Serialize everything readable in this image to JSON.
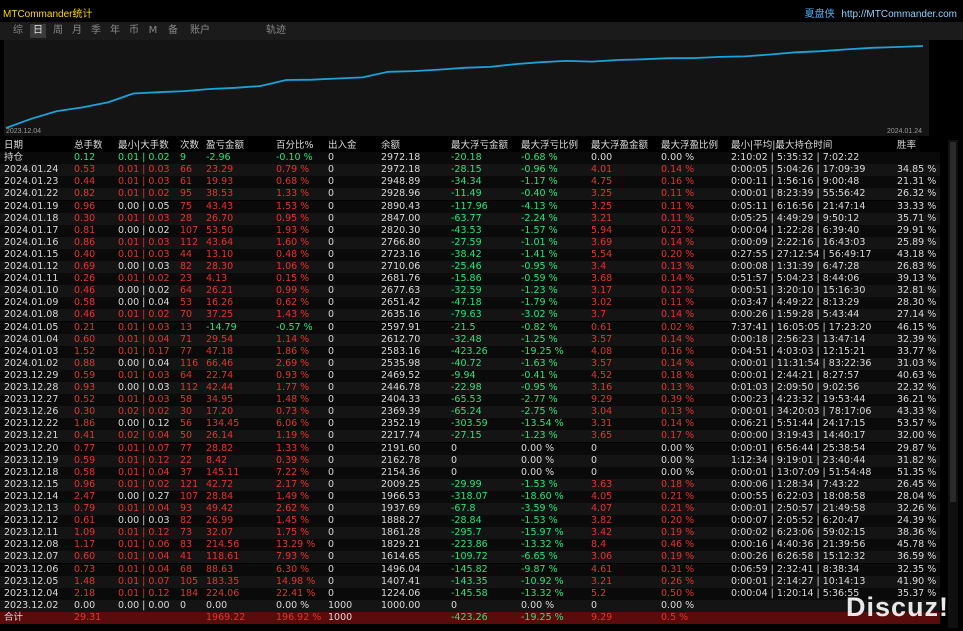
{
  "header": {
    "brand": "MTCommander统计",
    "copyright_cn": "夏盘侠",
    "copyright_url": "http://MTCommander.com"
  },
  "tabs": [
    "综",
    "日",
    "周",
    "月",
    "季",
    "年",
    "币",
    "M",
    "备",
    "账户",
    "轨迹"
  ],
  "active_tab": "日",
  "chart_data": {
    "type": "line",
    "x_start": "2023.12.04",
    "x_end": "2024.01.24",
    "line_color": "#1aa3d9",
    "background": "#141414"
  },
  "columns": [
    "日期",
    "总手数",
    "最小|大手数",
    "次数",
    "盈亏金额",
    "百分比%",
    "出入金",
    "余额",
    "最大浮亏金额",
    "最大浮亏比例",
    "最大浮盈金额",
    "最大浮盈比例",
    "最小|平均|最大持仓时间",
    "胜率"
  ],
  "holding": {
    "date": "持仓",
    "lots": "0.12",
    "minmax": "0.01 | 0.02",
    "count": "9",
    "pnl": "-2.96",
    "pct": "-0.10 %",
    "flow": "0",
    "balance": "2972.18",
    "dd": "-20.18",
    "ddpct": "-0.68 %",
    "fp": "0.00",
    "fppct": "0.00 %",
    "time": "2:10:02 | 5:35:32 | 7:02:22",
    "win": ""
  },
  "rows": [
    {
      "date": "2024.01.24",
      "lots": "0.53",
      "minmax": "0.01 | 0.03",
      "count": "66",
      "pnl": "23.29",
      "pct": "0.79 %",
      "flow": "0",
      "balance": "2972.18",
      "dd": "-28.15",
      "ddpct": "-0.96 %",
      "fp": "4.01",
      "fppct": "0.14 %",
      "time": "0:00:05 | 5:04:26 | 17:09:39",
      "win": "34.85 %"
    },
    {
      "date": "2024.01.23",
      "lots": "0.44",
      "minmax": "0.01 | 0.03",
      "count": "61",
      "pnl": "19.93",
      "pct": "0.68 %",
      "flow": "0",
      "balance": "2948.89",
      "dd": "-34.34",
      "ddpct": "-1.17 %",
      "fp": "4.75",
      "fppct": "0.16 %",
      "time": "0:00:11 | 1:56:16 | 9:00:48",
      "win": "21.31 %"
    },
    {
      "date": "2024.01.22",
      "lots": "0.82",
      "minmax": "0.01 | 0.02",
      "count": "95",
      "pnl": "38.53",
      "pct": "1.33 %",
      "flow": "0",
      "balance": "2928.96",
      "dd": "-11.49",
      "ddpct": "-0.40 %",
      "fp": "3.25",
      "fppct": "0.11 %",
      "time": "0:00:01 | 8:23:39 | 55:56:42",
      "win": "26.32 %"
    },
    {
      "date": "2024.01.19",
      "lots": "0.96",
      "minmax": "0.00 | 0.05",
      "count": "75",
      "pnl": "43.43",
      "pct": "1.53 %",
      "flow": "0",
      "balance": "2890.43",
      "dd": "-117.96",
      "ddpct": "-4.13 %",
      "fp": "3.25",
      "fppct": "0.11 %",
      "time": "0:05:11 | 6:16:56 | 21:47:14",
      "win": "33.33 %"
    },
    {
      "date": "2024.01.18",
      "lots": "0.30",
      "minmax": "0.01 | 0.03",
      "count": "28",
      "pnl": "26.70",
      "pct": "0.95 %",
      "flow": "0",
      "balance": "2847.00",
      "dd": "-63.77",
      "ddpct": "-2.24 %",
      "fp": "3.21",
      "fppct": "0.11 %",
      "time": "0:05:25 | 4:49:29 | 9:50:12",
      "win": "35.71 %"
    },
    {
      "date": "2024.01.17",
      "lots": "0.81",
      "minmax": "0.00 | 0.02",
      "count": "107",
      "pnl": "53.50",
      "pct": "1.93 %",
      "flow": "0",
      "balance": "2820.30",
      "dd": "-43.53",
      "ddpct": "-1.57 %",
      "fp": "5.94",
      "fppct": "0.21 %",
      "time": "0:00:04 | 1:22:28 | 6:39:40",
      "win": "29.91 %"
    },
    {
      "date": "2024.01.16",
      "lots": "0.86",
      "minmax": "0.01 | 0.03",
      "count": "112",
      "pnl": "43.64",
      "pct": "1.60 %",
      "flow": "0",
      "balance": "2766.80",
      "dd": "-27.59",
      "ddpct": "-1.01 %",
      "fp": "3.69",
      "fppct": "0.14 %",
      "time": "0:00:09 | 2:22:16 | 16:43:03",
      "win": "25.89 %"
    },
    {
      "date": "2024.01.15",
      "lots": "0.40",
      "minmax": "0.01 | 0.03",
      "count": "44",
      "pnl": "13.10",
      "pct": "0.48 %",
      "flow": "0",
      "balance": "2723.16",
      "dd": "-38.42",
      "ddpct": "-1.41 %",
      "fp": "5.54",
      "fppct": "0.20 %",
      "time": "0:27:55 | 27:12:54 | 56:49:17",
      "win": "43.18 %"
    },
    {
      "date": "2024.01.12",
      "lots": "0.69",
      "minmax": "0.00 | 0.03",
      "count": "82",
      "pnl": "28.30",
      "pct": "1.06 %",
      "flow": "0",
      "balance": "2710.06",
      "dd": "-25.46",
      "ddpct": "-0.95 %",
      "fp": "3.4",
      "fppct": "0.13 %",
      "time": "0:00:08 | 1:31:39 | 6:47:28",
      "win": "26.83 %"
    },
    {
      "date": "2024.01.11",
      "lots": "0.26",
      "minmax": "0.01 | 0.02",
      "count": "23",
      "pnl": "4.13",
      "pct": "0.15 %",
      "flow": "0",
      "balance": "2681.76",
      "dd": "-15.86",
      "ddpct": "-0.59 %",
      "fp": "3.68",
      "fppct": "0.14 %",
      "time": "0:51:57 | 5:04:23 | 8:44:06",
      "win": "39.13 %"
    },
    {
      "date": "2024.01.10",
      "lots": "0.46",
      "minmax": "0.00 | 0.02",
      "count": "64",
      "pnl": "26.21",
      "pct": "0.99 %",
      "flow": "0",
      "balance": "2677.63",
      "dd": "-32.59",
      "ddpct": "-1.23 %",
      "fp": "3.17",
      "fppct": "0.12 %",
      "time": "0:00:51 | 3:20:10 | 15:16:30",
      "win": "32.81 %"
    },
    {
      "date": "2024.01.09",
      "lots": "0.58",
      "minmax": "0.00 | 0.04",
      "count": "53",
      "pnl": "16.26",
      "pct": "0.62 %",
      "flow": "0",
      "balance": "2651.42",
      "dd": "-47.18",
      "ddpct": "-1.79 %",
      "fp": "3.02",
      "fppct": "0.11 %",
      "time": "0:03:47 | 4:49:22 | 8:13:29",
      "win": "28.30 %"
    },
    {
      "date": "2024.01.08",
      "lots": "0.46",
      "minmax": "0.01 | 0.02",
      "count": "70",
      "pnl": "37.25",
      "pct": "1.43 %",
      "flow": "0",
      "balance": "2635.16",
      "dd": "-79.63",
      "ddpct": "-3.02 %",
      "fp": "3.7",
      "fppct": "0.14 %",
      "time": "0:00:26 | 1:59:28 | 5:43:44",
      "win": "27.14 %"
    },
    {
      "date": "2024.01.05",
      "lots": "0.21",
      "minmax": "0.01 | 0.03",
      "count": "13",
      "pnl": "-14.79",
      "pct": "-0.57 %",
      "flow": "0",
      "balance": "2597.91",
      "dd": "-21.5",
      "ddpct": "-0.82 %",
      "fp": "0.61",
      "fppct": "0.02 %",
      "time": "7:37:41 | 16:05:05 | 17:23:20",
      "win": "46.15 %"
    },
    {
      "date": "2024.01.04",
      "lots": "0.60",
      "minmax": "0.01 | 0.04",
      "count": "71",
      "pnl": "29.54",
      "pct": "1.14 %",
      "flow": "0",
      "balance": "2612.70",
      "dd": "-32.48",
      "ddpct": "-1.25 %",
      "fp": "3.57",
      "fppct": "0.14 %",
      "time": "0:00:18 | 2:56:23 | 13:47:14",
      "win": "32.39 %"
    },
    {
      "date": "2024.01.03",
      "lots": "1.52",
      "minmax": "0.01 | 0.17",
      "count": "77",
      "pnl": "47.18",
      "pct": "1.86 %",
      "flow": "0",
      "balance": "2583.16",
      "dd": "-423.26",
      "ddpct": "-19.25 %",
      "fp": "4.08",
      "fppct": "0.16 %",
      "time": "0:04:51 | 4:03:03 | 12:15:21",
      "win": "33.77 %"
    },
    {
      "date": "2024.01.02",
      "lots": "0.88",
      "minmax": "0.00 | 0.04",
      "count": "116",
      "pnl": "66.46",
      "pct": "2.69 %",
      "flow": "0",
      "balance": "2535.98",
      "dd": "-40.72",
      "ddpct": "-1.63 %",
      "fp": "3.57",
      "fppct": "0.14 %",
      "time": "0:00:01 | 11:31:54 | 83:22:36",
      "win": "31.03 %"
    },
    {
      "date": "2023.12.29",
      "lots": "0.59",
      "minmax": "0.01 | 0.03",
      "count": "64",
      "pnl": "22.74",
      "pct": "0.93 %",
      "flow": "0",
      "balance": "2469.52",
      "dd": "-9.94",
      "ddpct": "-0.41 %",
      "fp": "4.52",
      "fppct": "0.18 %",
      "time": "0:00:01 | 2:44:21 | 8:27:57",
      "win": "40.63 %"
    },
    {
      "date": "2023.12.28",
      "lots": "0.93",
      "minmax": "0.00 | 0.03",
      "count": "112",
      "pnl": "42.44",
      "pct": "1.77 %",
      "flow": "0",
      "balance": "2446.78",
      "dd": "-22.98",
      "ddpct": "-0.95 %",
      "fp": "3.16",
      "fppct": "0.13 %",
      "time": "0:01:03 | 2:09:50 | 9:02:56",
      "win": "22.32 %"
    },
    {
      "date": "2023.12.27",
      "lots": "0.52",
      "minmax": "0.01 | 0.03",
      "count": "58",
      "pnl": "34.95",
      "pct": "1.48 %",
      "flow": "0",
      "balance": "2404.33",
      "dd": "-65.53",
      "ddpct": "-2.77 %",
      "fp": "9.29",
      "fppct": "0.39 %",
      "time": "0:00:23 | 4:23:32 | 19:53:44",
      "win": "36.21 %"
    },
    {
      "date": "2023.12.26",
      "lots": "0.30",
      "minmax": "0.02 | 0.02",
      "count": "30",
      "pnl": "17.20",
      "pct": "0.73 %",
      "flow": "0",
      "balance": "2369.39",
      "dd": "-65.24",
      "ddpct": "-2.75 %",
      "fp": "3.04",
      "fppct": "0.13 %",
      "time": "0:00:01 | 34:20:03 | 78:17:06",
      "win": "43.33 %"
    },
    {
      "date": "2023.12.22",
      "lots": "1.86",
      "minmax": "0.00 | 0.12",
      "count": "56",
      "pnl": "134.45",
      "pct": "6.06 %",
      "flow": "0",
      "balance": "2352.19",
      "dd": "-303.59",
      "ddpct": "-13.54 %",
      "fp": "3.31",
      "fppct": "0.14 %",
      "time": "0:06:21 | 5:51:44 | 24:17:15",
      "win": "53.57 %"
    },
    {
      "date": "2023.12.21",
      "lots": "0.41",
      "minmax": "0.02 | 0.04",
      "count": "50",
      "pnl": "26.14",
      "pct": "1.19 %",
      "flow": "0",
      "balance": "2217.74",
      "dd": "-27.15",
      "ddpct": "-1.23 %",
      "fp": "3.65",
      "fppct": "0.17 %",
      "time": "0:00:00 | 3:19:43 | 14:40:17",
      "win": "32.00 %"
    },
    {
      "date": "2023.12.20",
      "lots": "0.77",
      "minmax": "0.01 | 0.07",
      "count": "77",
      "pnl": "28.82",
      "pct": "1.33 %",
      "flow": "0",
      "balance": "2191.60",
      "dd": "0",
      "ddpct": "0.00 %",
      "fp": "0",
      "fppct": "0.00 %",
      "time": "0:00:01 | 6:56:44 | 25:38:54",
      "win": "29.87 %"
    },
    {
      "date": "2023.12.19",
      "lots": "0.59",
      "minmax": "0.01 | 0.12",
      "count": "22",
      "pnl": "8.42",
      "pct": "0.39 %",
      "flow": "0",
      "balance": "2162.78",
      "dd": "0",
      "ddpct": "0.00 %",
      "fp": "0",
      "fppct": "0.00 %",
      "time": "1:12:34 | 9:19:01 | 23:40:44",
      "win": "31.82 %"
    },
    {
      "date": "2023.12.18",
      "lots": "0.58",
      "minmax": "0.01 | 0.04",
      "count": "37",
      "pnl": "145.11",
      "pct": "7.22 %",
      "flow": "0",
      "balance": "2154.36",
      "dd": "0",
      "ddpct": "0.00 %",
      "fp": "0",
      "fppct": "0.00 %",
      "time": "0:00:01 | 13:07:09 | 51:54:48",
      "win": "51.35 %"
    },
    {
      "date": "2023.12.15",
      "lots": "0.96",
      "minmax": "0.01 | 0.02",
      "count": "121",
      "pnl": "42.72",
      "pct": "2.17 %",
      "flow": "0",
      "balance": "2009.25",
      "dd": "-29.99",
      "ddpct": "-1.53 %",
      "fp": "3.63",
      "fppct": "0.18 %",
      "time": "0:00:06 | 1:28:34 | 7:43:22",
      "win": "26.45 %"
    },
    {
      "date": "2023.12.14",
      "lots": "2.47",
      "minmax": "0.00 | 0.27",
      "count": "107",
      "pnl": "28.84",
      "pct": "1.49 %",
      "flow": "0",
      "balance": "1966.53",
      "dd": "-318.07",
      "ddpct": "-18.60 %",
      "fp": "4.05",
      "fppct": "0.21 %",
      "time": "0:00:55 | 6:22:03 | 18:08:58",
      "win": "28.04 %"
    },
    {
      "date": "2023.12.13",
      "lots": "0.79",
      "minmax": "0.01 | 0.04",
      "count": "93",
      "pnl": "49.42",
      "pct": "2.62 %",
      "flow": "0",
      "balance": "1937.69",
      "dd": "-67.8",
      "ddpct": "-3.59 %",
      "fp": "4.07",
      "fppct": "0.21 %",
      "time": "0:00:01 | 2:50:57 | 21:49:58",
      "win": "32.26 %"
    },
    {
      "date": "2023.12.12",
      "lots": "0.61",
      "minmax": "0.00 | 0.03",
      "count": "82",
      "pnl": "26.99",
      "pct": "1.45 %",
      "flow": "0",
      "balance": "1888.27",
      "dd": "-28.84",
      "ddpct": "-1.53 %",
      "fp": "3.82",
      "fppct": "0.20 %",
      "time": "0:00:07 | 2:05:52 | 6:20:47",
      "win": "24.39 %"
    },
    {
      "date": "2023.12.11",
      "lots": "1.09",
      "minmax": "0.01 | 0.12",
      "count": "73",
      "pnl": "32.07",
      "pct": "1.75 %",
      "flow": "0",
      "balance": "1861.28",
      "dd": "-295.7",
      "ddpct": "-15.97 %",
      "fp": "3.42",
      "fppct": "0.19 %",
      "time": "0:00:02 | 6:23:06 | 59:02:15",
      "win": "38.36 %"
    },
    {
      "date": "2023.12.08",
      "lots": "1.17",
      "minmax": "0.01 | 0.06",
      "count": "83",
      "pnl": "214.56",
      "pct": "13.29 %",
      "flow": "0",
      "balance": "1829.21",
      "dd": "-223.86",
      "ddpct": "-13.32 %",
      "fp": "8.4",
      "fppct": "0.46 %",
      "time": "0:00:16 | 4:40:36 | 21:39:56",
      "win": "45.78 %"
    },
    {
      "date": "2023.12.07",
      "lots": "0.60",
      "minmax": "0.01 | 0.04",
      "count": "41",
      "pnl": "118.61",
      "pct": "7.93 %",
      "flow": "0",
      "balance": "1614.65",
      "dd": "-109.72",
      "ddpct": "-6.65 %",
      "fp": "3.06",
      "fppct": "0.19 %",
      "time": "0:00:26 | 6:26:58 | 15:12:32",
      "win": "36.59 %"
    },
    {
      "date": "2023.12.06",
      "lots": "0.73",
      "minmax": "0.01 | 0.04",
      "count": "68",
      "pnl": "88.63",
      "pct": "6.30 %",
      "flow": "0",
      "balance": "1496.04",
      "dd": "-145.82",
      "ddpct": "-9.87 %",
      "fp": "4.61",
      "fppct": "0.31 %",
      "time": "0:06:59 | 2:32:41 | 8:38:34",
      "win": "32.35 %"
    },
    {
      "date": "2023.12.05",
      "lots": "1.48",
      "minmax": "0.01 | 0.07",
      "count": "105",
      "pnl": "183.35",
      "pct": "14.98 %",
      "flow": "0",
      "balance": "1407.41",
      "dd": "-143.35",
      "ddpct": "-10.92 %",
      "fp": "3.21",
      "fppct": "0.26 %",
      "time": "0:00:01 | 2:14:27 | 10:14:13",
      "win": "41.90 %"
    },
    {
      "date": "2023.12.04",
      "lots": "2.18",
      "minmax": "0.01 | 0.12",
      "count": "184",
      "pnl": "224.06",
      "pct": "22.41 %",
      "flow": "0",
      "balance": "1224.06",
      "dd": "-145.58",
      "ddpct": "-13.32 %",
      "fp": "5.2",
      "fppct": "0.50 %",
      "time": "0:00:04 | 1:20:14 | 5:36:55",
      "win": "35.37 %"
    },
    {
      "date": "2023.12.02",
      "lots": "0.00",
      "minmax": "0.00 | 0.00",
      "count": "0",
      "pnl": "0.00",
      "pct": "0.00 %",
      "flow": "1000",
      "balance": "1000.00",
      "dd": "0",
      "ddpct": "0.00 %",
      "fp": "0",
      "fppct": "0.00 %",
      "time": "",
      "win": ""
    }
  ],
  "total": {
    "date": "合计",
    "lots": "29.31",
    "minmax": "",
    "count": "",
    "pnl": "1969.22",
    "pct": "196.92 %",
    "flow": "1000",
    "balance": "",
    "dd": "-423.26",
    "ddpct": "-19.25 %",
    "fp": "9.29",
    "fppct": "0.5 %",
    "time": "",
    "win": ""
  },
  "watermark": "Discuz!"
}
